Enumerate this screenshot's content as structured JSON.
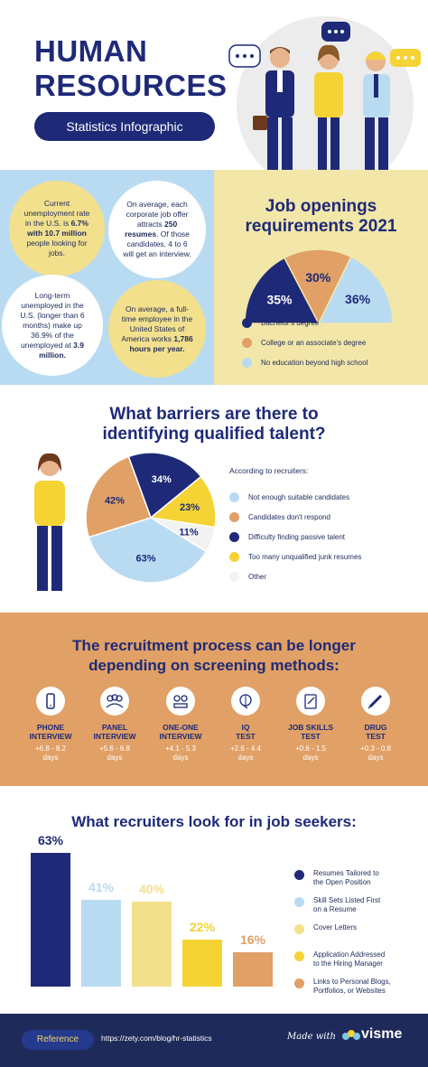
{
  "header": {
    "title_line1": "HUMAN",
    "title_line2": "RESOURCES",
    "subtitle": "Statistics Infographic"
  },
  "stats": [
    {
      "text_pre": "Current unemployment rate in the U.S. is ",
      "bold": "6.7% with 10.7 million",
      "text_post": " people looking for jobs."
    },
    {
      "text_pre": "On average, each corporate job offer attracts ",
      "bold": "250 resumes",
      "text_post": ". Of those candidates, 4 to 6 will get an interview."
    },
    {
      "text_pre": "Long-term unemployed in the U.S. (longer than 6 months) make up 36.9% of the unemployed at ",
      "bold": "3.9 million.",
      "text_post": ""
    },
    {
      "text_pre": "On average, a full-time employee in the United States of America works ",
      "bold": "1,786 hours per year.",
      "text_post": ""
    }
  ],
  "job_openings": {
    "title_line1": "Job openings",
    "title_line2": "requirements 2021",
    "slices": [
      {
        "label": "Bachelor's degree",
        "value": 35,
        "display": "35%",
        "color": "#1e2a78"
      },
      {
        "label": "College or an associate's degree",
        "value": 30,
        "display": "30%",
        "color": "#e0a066"
      },
      {
        "label": "No education beyond high school",
        "value": 36,
        "display": "36%",
        "color": "#b9dbf2"
      }
    ]
  },
  "barriers": {
    "title_line1": "What barriers are there to",
    "title_line2": "identifying qualified talent?",
    "according": "According to recruiters:",
    "slices": [
      {
        "label": "Not enough suitable candidates",
        "value": 63,
        "display": "63%",
        "color": "#b9dbf2"
      },
      {
        "label": "Candidates don't respond",
        "value": 42,
        "display": "42%",
        "color": "#e0a066"
      },
      {
        "label": "Difficulty finding passive talent",
        "value": 34,
        "display": "34%",
        "color": "#1e2a78"
      },
      {
        "label": "Too many unqualified junk resumes",
        "value": 23,
        "display": "23%",
        "color": "#f5d335"
      },
      {
        "label": "Other",
        "value": 11,
        "display": "11%",
        "color": "#f2f2f2"
      }
    ]
  },
  "recruitment": {
    "title_line1": "The recruitment process can be longer",
    "title_line2": "depending on screening methods:",
    "methods": [
      {
        "name1": "PHONE",
        "name2": "INTERVIEW",
        "range": "+6.8 - 8.2",
        "unit": "days",
        "icon": "phone-icon"
      },
      {
        "name1": "PANEL",
        "name2": "INTERVIEW",
        "range": "+5.6 - 6.8",
        "unit": "days",
        "icon": "group-icon"
      },
      {
        "name1": "ONE-ONE",
        "name2": "INTERVIEW",
        "range": "+4.1 - 5.3",
        "unit": "days",
        "icon": "meeting-icon"
      },
      {
        "name1": "IQ",
        "name2": "TEST",
        "range": "+2.6 - 4.4",
        "unit": "days",
        "icon": "brain-icon"
      },
      {
        "name1": "JOB SKILLS",
        "name2": "TEST",
        "range": "+0.6 - 1.5",
        "unit": "days",
        "icon": "clipboard-icon"
      },
      {
        "name1": "DRUG",
        "name2": "TEST",
        "range": "+0.3 - 0.8",
        "unit": "days",
        "icon": "syringe-icon"
      }
    ]
  },
  "chart_data": {
    "type": "bar",
    "title": "What recruiters look for in job seekers:",
    "categories": [
      "Resumes Tailored to the Open Position",
      "Skill Sets Listed First on a Resume",
      "Cover Letters",
      "Application Addressed to the Hiring Manager",
      "Links to Personal Blogs, Portfolios, or Websites"
    ],
    "values": [
      63,
      41,
      40,
      22,
      16
    ],
    "labels": [
      "63%",
      "41%",
      "40%",
      "22%",
      "16%"
    ],
    "colors": [
      "#1e2a78",
      "#b9dbf2",
      "#f2e08d",
      "#f5d335",
      "#e0a066"
    ],
    "legend_lines": [
      [
        "Resumes Tailored to",
        "the Open Position"
      ],
      [
        "Skill Sets Listed First",
        "on a Resume"
      ],
      [
        "Cover Letters",
        ""
      ],
      [
        "Application Addressed",
        "to the Hiring Manager"
      ],
      [
        "Links to Personal Blogs,",
        "Portfolios, or Websites"
      ]
    ],
    "ylim": [
      0,
      63
    ],
    "legend": "right"
  },
  "footer": {
    "reference_label": "Reference",
    "url": "https://zety.com/blog/hr-statistics",
    "made_with": "Made with",
    "brand": "visme"
  }
}
